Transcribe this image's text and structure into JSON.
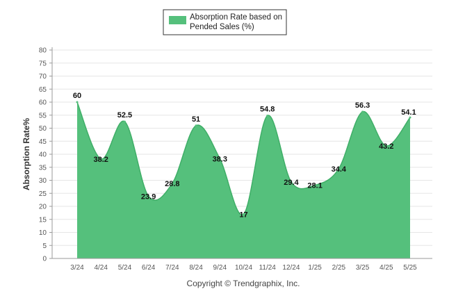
{
  "chart_data": {
    "type": "area",
    "categories": [
      "3/24",
      "4/24",
      "5/24",
      "6/24",
      "7/24",
      "8/24",
      "9/24",
      "10/24",
      "11/24",
      "12/24",
      "1/25",
      "2/25",
      "3/25",
      "4/25",
      "5/25"
    ],
    "series": [
      {
        "name": "Absorption Rate based on Pended Sales (%)",
        "values": [
          60,
          38.2,
          52.5,
          23.9,
          28.8,
          51,
          38.3,
          17,
          54.8,
          29.4,
          28.1,
          34.4,
          56.3,
          43.2,
          54.1
        ],
        "color": "#55c07c"
      }
    ],
    "legend": {
      "line1": "Absorption Rate based on",
      "line2": "Pended Sales (%)",
      "placement": "top-center"
    },
    "ylabel": "Absorption Rate%",
    "xlabel": "",
    "ylim": [
      0,
      80
    ],
    "yticks": [
      0,
      5,
      10,
      15,
      20,
      25,
      30,
      35,
      40,
      45,
      50,
      55,
      60,
      65,
      70,
      75,
      80
    ],
    "grid": true,
    "data_labels": [
      "60",
      "38.2",
      "52.5",
      "23.9",
      "28.8",
      "51",
      "38.3",
      "17",
      "54.8",
      "29.4",
      "28.1",
      "34.4",
      "56.3",
      "43.2",
      "54.1"
    ]
  },
  "footer": {
    "copyright": "Copyright © Trendgraphix, Inc."
  }
}
